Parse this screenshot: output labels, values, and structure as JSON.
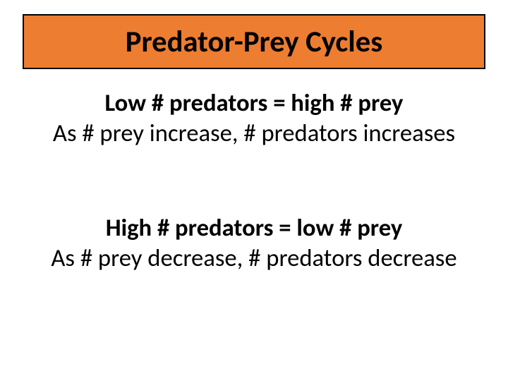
{
  "title": {
    "text": "Predator-Prey Cycles",
    "box_background": "#ed7d31",
    "box_border_color": "#000000",
    "box_border_width": 2,
    "font_color": "#000000",
    "font_size_pt": 32
  },
  "content": {
    "font_color": "#000000",
    "font_size_pt": 26,
    "block1": {
      "line1": "Low # predators = high # prey",
      "line2": "As # prey increase, # predators increases"
    },
    "block2": {
      "line1": "High # predators = low # prey",
      "line2": "As # prey decrease, # predators decrease"
    }
  },
  "background_color": "#ffffff"
}
